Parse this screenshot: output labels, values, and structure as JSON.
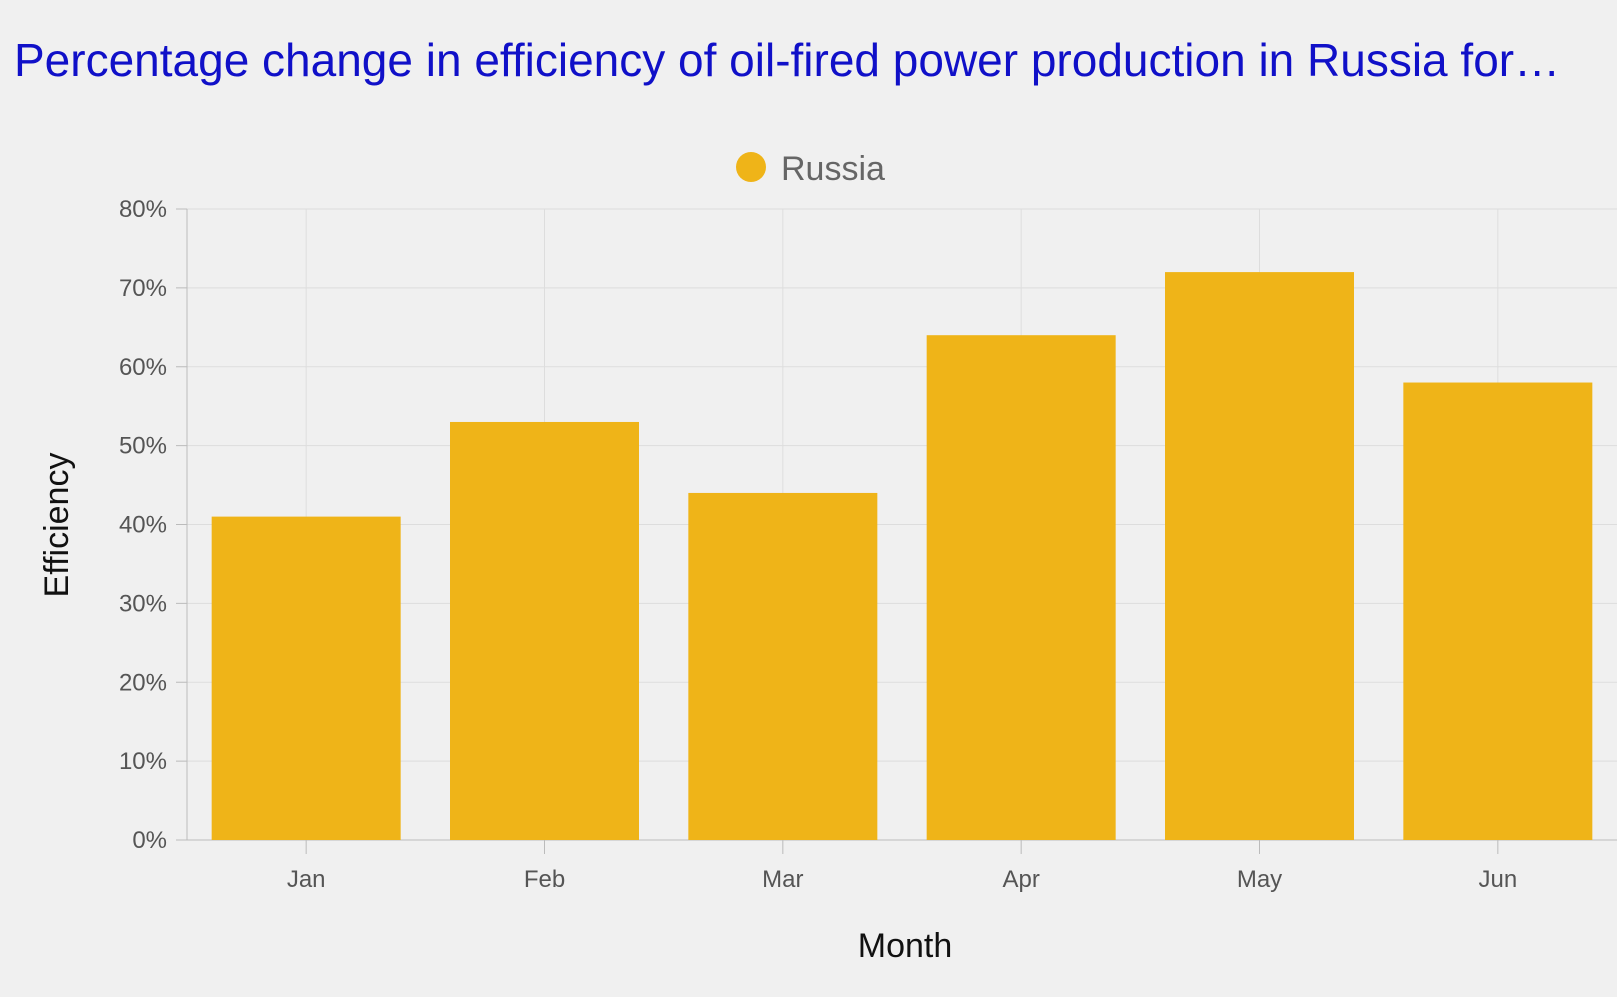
{
  "chart_data": {
    "type": "bar",
    "title": "Percentage change in efficiency of oil-fired power production in Russia for…",
    "xlabel": "Month",
    "ylabel": "Efficiency",
    "categories": [
      "Jan",
      "Feb",
      "Mar",
      "Apr",
      "May",
      "Jun"
    ],
    "series": [
      {
        "name": "Russia",
        "color": "#efb418",
        "values": [
          41,
          53,
          44,
          64,
          72,
          58
        ]
      }
    ],
    "ylim": [
      0,
      80
    ],
    "yticks": [
      0,
      10,
      20,
      30,
      40,
      50,
      60,
      70,
      80
    ],
    "ytick_labels": [
      "0%",
      "10%",
      "20%",
      "30%",
      "40%",
      "50%",
      "60%",
      "70%",
      "80%"
    ],
    "grid": true,
    "legend_position": "top-center"
  },
  "colors": {
    "title": "#1010c8",
    "background": "#f0f0f0",
    "bar": "#efb418"
  }
}
